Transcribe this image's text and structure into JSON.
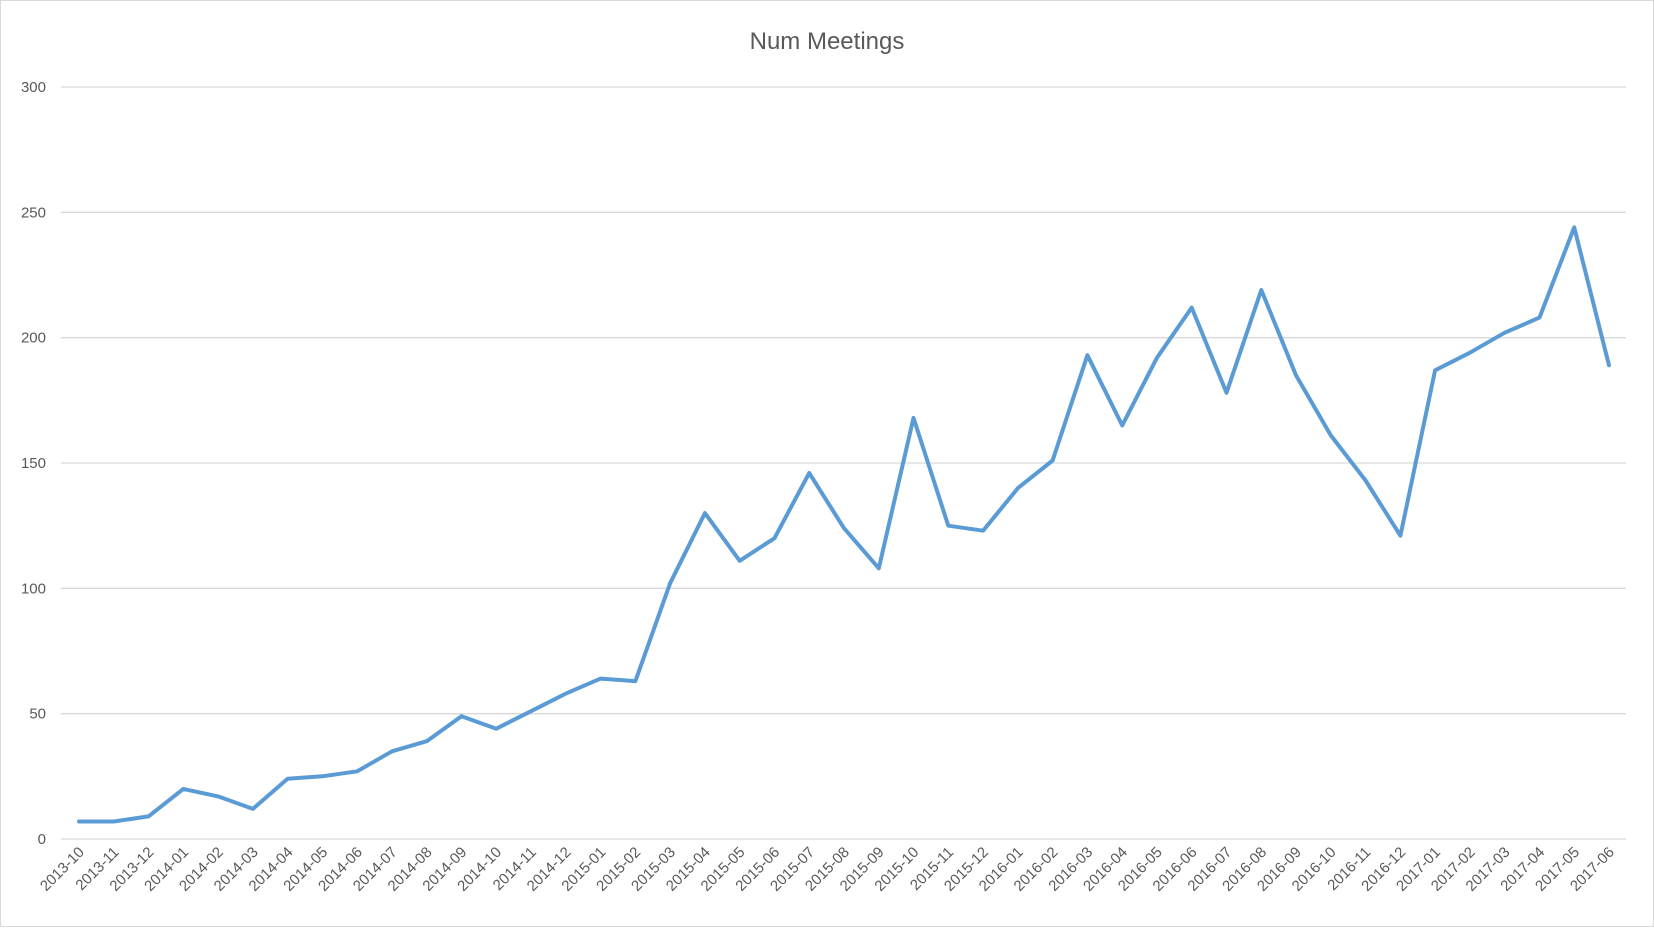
{
  "chart_data": {
    "type": "line",
    "title": "Num Meetings",
    "xlabel": "",
    "ylabel": "",
    "ylim": [
      0,
      300
    ],
    "yticks": [
      "0",
      "50",
      "100",
      "150",
      "200",
      "250",
      "300"
    ],
    "grid": true,
    "legend": "none",
    "color": "#5b9bd5",
    "categories": [
      "2013-10",
      "2013-11",
      "2013-12",
      "2014-01",
      "2014-02",
      "2014-03",
      "2014-04",
      "2014-05",
      "2014-06",
      "2014-07",
      "2014-08",
      "2014-09",
      "2014-10",
      "2014-11",
      "2014-12",
      "2015-01",
      "2015-02",
      "2015-03",
      "2015-04",
      "2015-05",
      "2015-06",
      "2015-07",
      "2015-08",
      "2015-09",
      "2015-10",
      "2015-11",
      "2015-12",
      "2016-01",
      "2016-02",
      "2016-03",
      "2016-04",
      "2016-05",
      "2016-06",
      "2016-07",
      "2016-08",
      "2016-09",
      "2016-10",
      "2016-11",
      "2016-12",
      "2017-01",
      "2017-02",
      "2017-03",
      "2017-04",
      "2017-05",
      "2017-06"
    ],
    "series": [
      {
        "values": [
          7,
          7,
          9,
          20,
          17,
          12,
          24,
          25,
          27,
          35,
          39,
          49,
          44,
          51,
          58,
          64,
          63,
          102,
          130,
          111,
          120,
          146,
          124,
          108,
          168,
          125,
          123,
          140,
          151,
          193,
          165,
          192,
          212,
          178,
          219,
          185,
          161,
          143,
          121,
          187,
          194,
          202,
          208,
          244,
          189
        ]
      }
    ]
  }
}
